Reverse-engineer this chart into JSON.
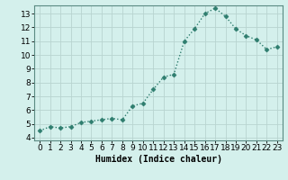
{
  "x": [
    0,
    1,
    2,
    3,
    4,
    5,
    6,
    7,
    8,
    9,
    10,
    11,
    12,
    13,
    14,
    15,
    16,
    17,
    18,
    19,
    20,
    21,
    22,
    23
  ],
  "y": [
    4.5,
    4.8,
    4.7,
    4.8,
    5.1,
    5.2,
    5.3,
    5.4,
    5.3,
    6.3,
    6.5,
    7.5,
    8.4,
    8.6,
    11.0,
    11.9,
    13.0,
    13.4,
    12.8,
    11.9,
    11.4,
    11.1,
    10.4,
    10.6
  ],
  "line_color": "#2e7d6e",
  "marker": "D",
  "marker_size": 2.5,
  "bg_color": "#d4f0ec",
  "grid_color": "#b8d4d0",
  "xlabel": "Humidex (Indice chaleur)",
  "xlim": [
    -0.5,
    23.5
  ],
  "ylim": [
    3.8,
    13.6
  ],
  "yticks": [
    4,
    5,
    6,
    7,
    8,
    9,
    10,
    11,
    12,
    13
  ],
  "xticks": [
    0,
    1,
    2,
    3,
    4,
    5,
    6,
    7,
    8,
    9,
    10,
    11,
    12,
    13,
    14,
    15,
    16,
    17,
    18,
    19,
    20,
    21,
    22,
    23
  ],
  "xlabel_fontsize": 7,
  "tick_fontsize": 6.5,
  "line_width": 1.0,
  "spine_color": "#5a8a82"
}
